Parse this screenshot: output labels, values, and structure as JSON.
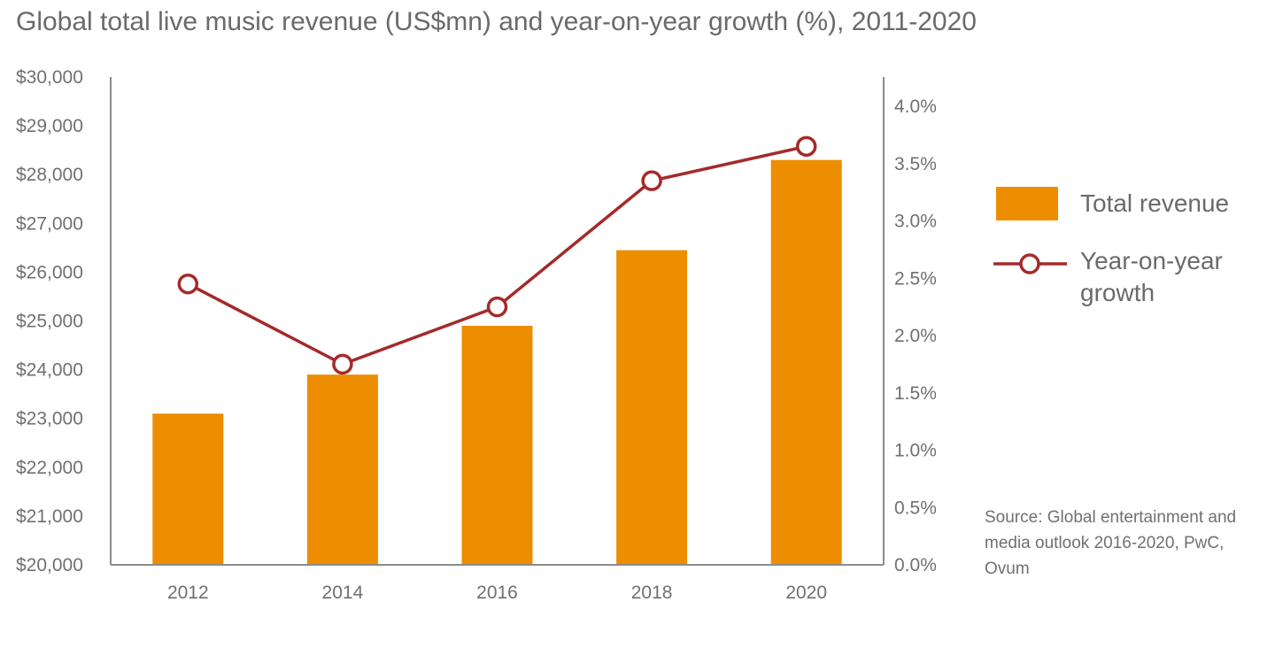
{
  "chart_data": {
    "type": "bar",
    "title": "Global total live music revenue (US$mn) and year-on-year growth (%), 2011-2020",
    "categories": [
      "2012",
      "2014",
      "2016",
      "2018",
      "2020"
    ],
    "series": [
      {
        "name": "Total revenue",
        "type": "bar",
        "axis": "left",
        "values": [
          23100,
          23900,
          24900,
          26450,
          28300
        ]
      },
      {
        "name": "Year-on-year growth",
        "type": "line",
        "axis": "right",
        "unit": "%",
        "values": [
          2.45,
          1.75,
          2.25,
          3.35,
          3.65
        ]
      }
    ],
    "y_left": {
      "ylim": [
        20000,
        30000
      ],
      "ticks": [
        "$20,000",
        "$21,000",
        "$22,000",
        "$23,000",
        "$24,000",
        "$25,000",
        "$26,000",
        "$27,000",
        "$28,000",
        "$29,000",
        "$30,000"
      ]
    },
    "y_right": {
      "ylim": [
        0,
        4.0
      ],
      "ticks": [
        "0.0%",
        "0.5%",
        "1.0%",
        "1.5%",
        "2.0%",
        "2.5%",
        "3.0%",
        "3.5%",
        "4.0%"
      ]
    },
    "grid": false,
    "legend": {
      "position": "right",
      "bar_label": "Total revenue",
      "line_label_1": "Year-on-year",
      "line_label_2": "growth"
    },
    "colors": {
      "bar": "#EC8E00",
      "line": "#A52A2A",
      "axis": "#8c8c8c"
    },
    "source_note": "Source: Global entertainment and media outlook 2016-2020, PwC, Ovum"
  }
}
